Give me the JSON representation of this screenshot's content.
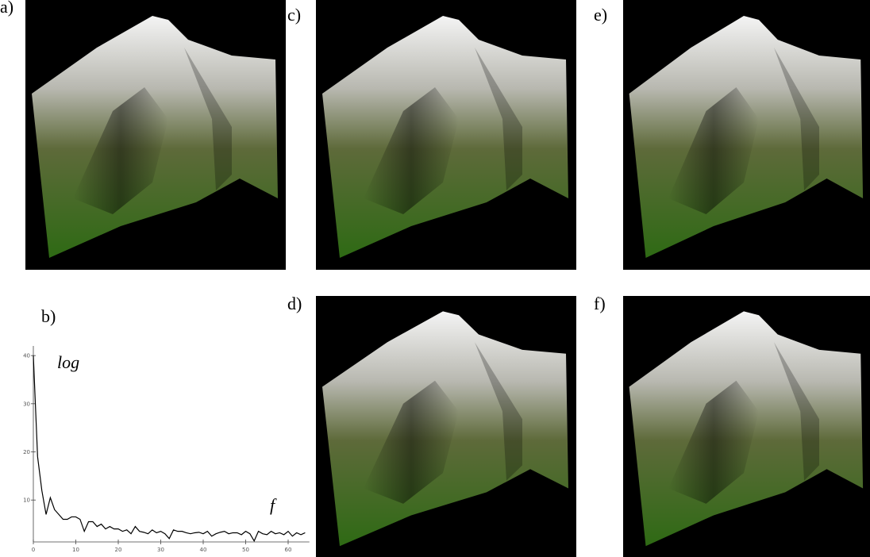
{
  "panels": {
    "a": "a)",
    "b": "b)",
    "c": "c)",
    "d": "d)",
    "e": "e)",
    "f": "f)"
  },
  "chart_data": {
    "type": "line",
    "annotations": [
      "log",
      "f"
    ],
    "x": [
      0,
      1,
      2,
      3,
      4,
      5,
      6,
      7,
      8,
      9,
      10,
      11,
      12,
      13,
      14,
      15,
      16,
      17,
      18,
      19,
      20,
      21,
      22,
      23,
      24,
      25,
      26,
      27,
      28,
      29,
      30,
      31,
      32,
      33,
      34,
      35,
      36,
      37,
      38,
      39,
      40,
      41,
      42,
      43,
      44,
      45,
      46,
      47,
      48,
      49,
      50,
      51,
      52,
      53,
      54,
      55,
      56,
      57,
      58,
      59,
      60,
      61,
      62,
      63,
      64
    ],
    "values": [
      40,
      19,
      12,
      7,
      10.5,
      8,
      7,
      6,
      6,
      6.5,
      6.5,
      6,
      3.5,
      5.5,
      5.5,
      4.5,
      5,
      4,
      4.5,
      4,
      4,
      3.5,
      3.8,
      3,
      4.5,
      3.5,
      3.3,
      3,
      3.8,
      3.2,
      3.5,
      3,
      2,
      3.8,
      3.5,
      3.5,
      3.2,
      3,
      3.2,
      3.3,
      3,
      3.5,
      2.5,
      3,
      3.3,
      3.5,
      3,
      3.2,
      3.2,
      2.8,
      3.5,
      3,
      1.5,
      3.5,
      3,
      2.8,
      3.5,
      3,
      3.2,
      2.8,
      3.5,
      2.5,
      3.2,
      2.8,
      3.2
    ],
    "color": "#000000",
    "xlim": [
      0,
      65
    ],
    "ylim": [
      1.3,
      42
    ],
    "xticks": [
      0,
      10,
      20,
      30,
      40,
      50,
      60
    ],
    "yticks": [
      10,
      20,
      30,
      40
    ]
  }
}
